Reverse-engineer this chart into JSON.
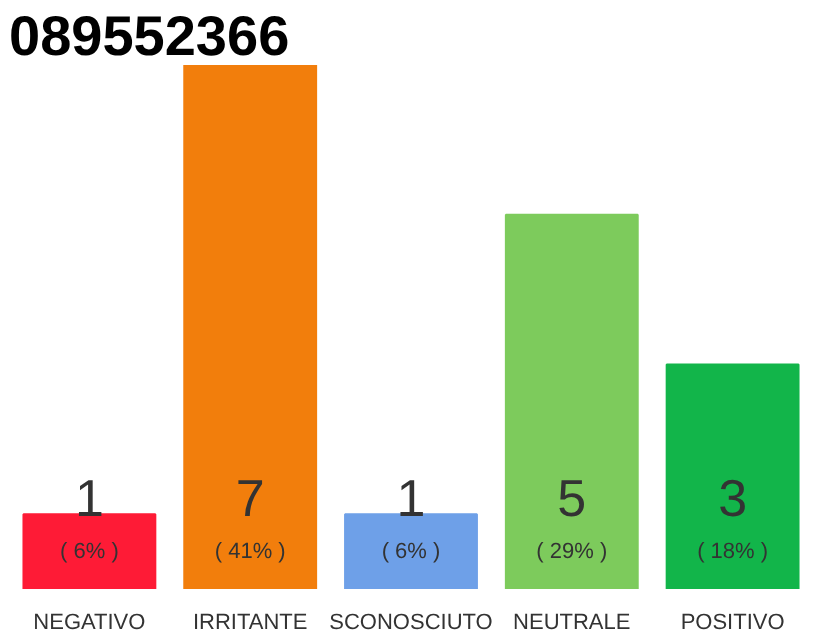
{
  "chart_data": {
    "type": "bar",
    "title": "089552366",
    "categories": [
      "NEGATIVO",
      "IRRITANTE",
      "SCONOSCIUTO",
      "NEUTRALE",
      "POSITIVO"
    ],
    "values": [
      1,
      7,
      1,
      5,
      3
    ],
    "colors": [
      "#fe1b36",
      "#f27e0c",
      "#6ea0e8",
      "#7dcb5c",
      "#12b54a"
    ],
    "ylim": [
      0,
      7
    ],
    "data_labels": true,
    "tick_labels": "x",
    "annotations": [
      "( 6% )",
      "( 41% )",
      "( 6% )",
      "( 29% )",
      "( 18% )"
    ]
  }
}
